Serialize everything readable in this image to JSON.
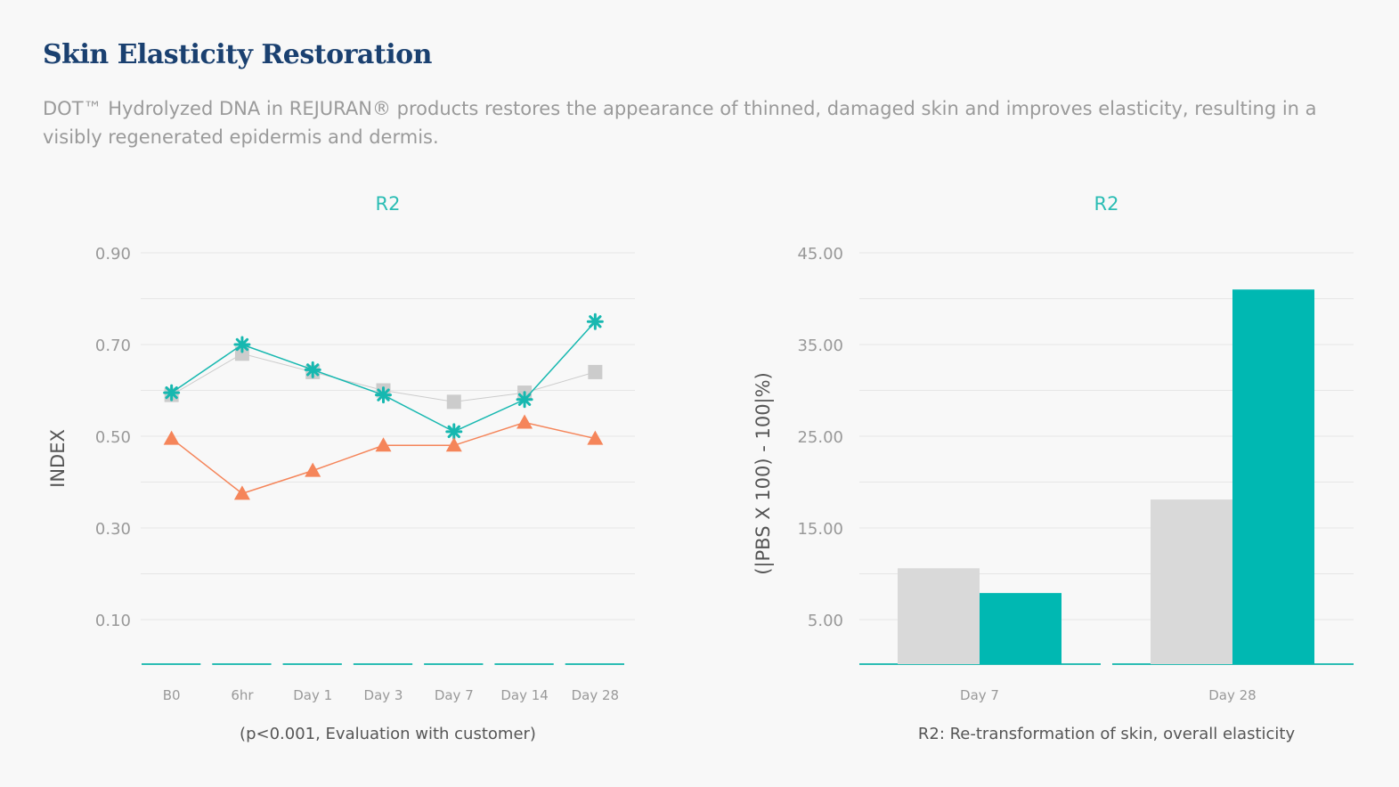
{
  "page": {
    "title": "Skin Elasticity Restoration",
    "description": "DOT™ Hydrolyzed DNA in REJURAN® products restores the appearance of thinned, damaged skin and improves elasticity, resulting in a visibly regenerated epidermis and dermis."
  },
  "colors": {
    "teal": "#17b8b0",
    "gray": "#d0d0d0",
    "orange": "#f5855a",
    "grid": "#e6e6e6",
    "axis": "#2bbdb4"
  },
  "chart_data": [
    {
      "type": "line",
      "title": "R2",
      "ylabel": "INDEX",
      "caption": "(p<0.001, Evaluation with customer)",
      "ylim": [
        0.0,
        0.9
      ],
      "yticks": [
        0.9,
        0.7,
        0.5,
        0.3,
        0.1
      ],
      "ytick_labels": [
        "0.90",
        "0.70",
        "0.50",
        "0.30",
        "0.10"
      ],
      "categories": [
        "B0",
        "6hr",
        "Day 1",
        "Day 3",
        "Day 7",
        "Day 14",
        "Day 28"
      ],
      "series": [
        {
          "name": "gray",
          "marker": "square",
          "color": "#cccccc",
          "values": [
            0.59,
            0.68,
            0.64,
            0.6,
            0.575,
            0.595,
            0.64
          ]
        },
        {
          "name": "teal",
          "marker": "asterisk",
          "color": "#17b8b0",
          "values": [
            0.595,
            0.7,
            0.645,
            0.59,
            0.51,
            0.58,
            0.75
          ]
        },
        {
          "name": "orange",
          "marker": "triangle",
          "color": "#f5855a",
          "values": [
            0.495,
            0.375,
            0.425,
            0.48,
            0.48,
            0.53,
            0.495
          ]
        }
      ]
    },
    {
      "type": "bar",
      "title": "R2",
      "ylabel": "(|PBS X 100) - 100|%)",
      "caption": "R2: Re-transformation of skin, overall elasticity",
      "ylim": [
        0.0,
        45.0
      ],
      "yticks": [
        45.0,
        35.0,
        25.0,
        15.0,
        5.0
      ],
      "ytick_labels": [
        "45.00",
        "35.00",
        "25.00",
        "15.00",
        "5.00"
      ],
      "categories": [
        "Day 7",
        "Day 28"
      ],
      "series": [
        {
          "name": "gray",
          "color": "#d9d9d9",
          "values": [
            10.6,
            18.1
          ]
        },
        {
          "name": "teal",
          "color": "#00b8b2",
          "values": [
            7.9,
            41.0
          ]
        }
      ]
    }
  ]
}
